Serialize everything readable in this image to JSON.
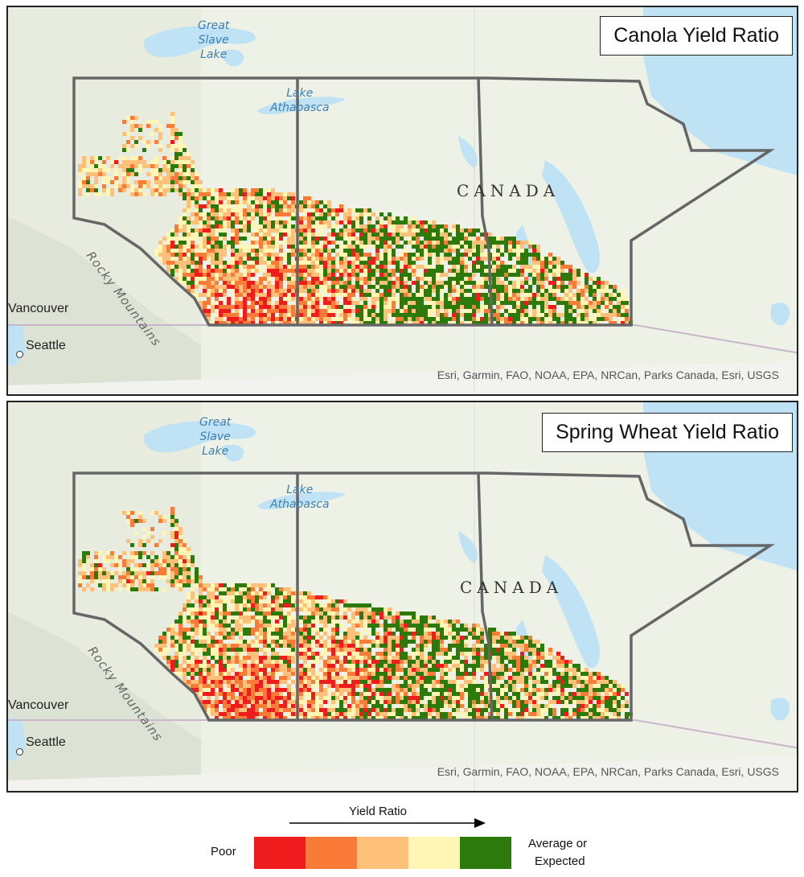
{
  "panels": [
    {
      "title": "Canola Yield Ratio",
      "attribution": "Esri, Garmin, FAO, NOAA, EPA, NRCan, Parks Canada, Esri, USGS",
      "labels": {
        "great_slave": [
          "Great",
          "Slave",
          "Lake"
        ],
        "athabasca": [
          "Lake",
          "Athabasca"
        ],
        "country": "CANADA",
        "rocky": "Rocky Mountains",
        "vancouver": "Vancouver",
        "seattle": "Seattle"
      }
    },
    {
      "title": "Spring Wheat Yield Ratio",
      "attribution": "Esri, Garmin, FAO, NOAA, EPA, NRCan, Parks Canada, Esri, USGS",
      "labels": {
        "great_slave": [
          "Great",
          "Slave",
          "Lake"
        ],
        "athabasca": [
          "Lake",
          "Athabasca"
        ],
        "country": "CANADA",
        "rocky": "Rocky Mountains",
        "vancouver": "Vancouver",
        "seattle": "Seattle"
      }
    }
  ],
  "legend": {
    "title": "Yield Ratio",
    "low_label": "Poor",
    "high_label": [
      "Average or",
      "Expected"
    ],
    "classes": [
      {
        "name": "class-1",
        "color": "#ee1c1c"
      },
      {
        "name": "class-2",
        "color": "#fa7b38"
      },
      {
        "name": "class-3",
        "color": "#ffc07a"
      },
      {
        "name": "class-4",
        "color": "#fff6b5"
      },
      {
        "name": "class-5",
        "color": "#2b7a0b"
      }
    ]
  },
  "colors": {
    "land": "#eef2e6",
    "water": "#bfe3f5",
    "boundary": "#666666"
  }
}
